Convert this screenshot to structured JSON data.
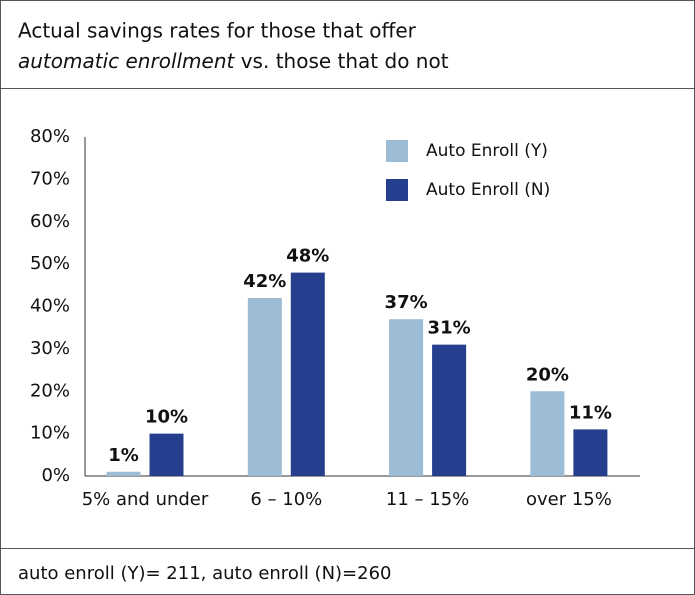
{
  "chart_data": {
    "type": "bar",
    "title": [
      "Actual savings rates for those that offer",
      "automatic enrollment",
      " vs. those that do not"
    ],
    "categories": [
      "5% and under",
      "6 – 10%",
      "11 – 15%",
      "over 15%"
    ],
    "series": [
      {
        "name": "Auto Enroll (Y)",
        "color": "#9dbcd5",
        "values": [
          1,
          42,
          37,
          20
        ],
        "value_labels": [
          "1%",
          "42%",
          "37%",
          "20%"
        ]
      },
      {
        "name": "Auto Enroll (N)",
        "color": "#253f8e",
        "values": [
          10,
          48,
          31,
          11
        ],
        "value_labels": [
          "10%",
          "48%",
          "31%",
          "11%"
        ]
      }
    ],
    "ylim": [
      0,
      80
    ],
    "yticks": [
      {
        "value": 0,
        "label": "0%"
      },
      {
        "value": 10,
        "label": "10%"
      },
      {
        "value": 20,
        "label": "20%"
      },
      {
        "value": 30,
        "label": "30%"
      },
      {
        "value": 40,
        "label": "40%"
      },
      {
        "value": 50,
        "label": "50%"
      },
      {
        "value": 60,
        "label": "60%"
      },
      {
        "value": 70,
        "label": "70%"
      },
      {
        "value": 80,
        "label": "80%"
      }
    ],
    "grid": false,
    "legend": "top-right",
    "note": "auto enroll (Y)= 211, auto enroll (N)=260"
  }
}
